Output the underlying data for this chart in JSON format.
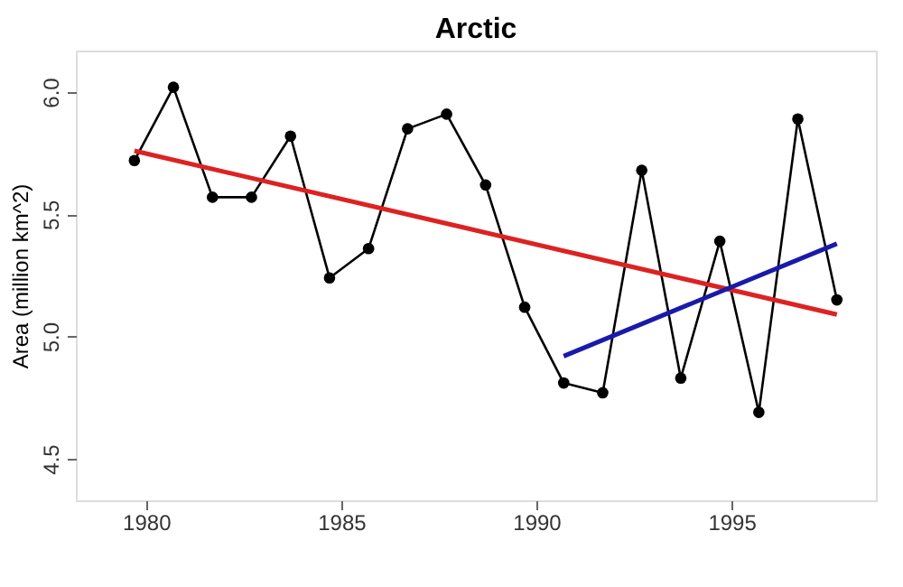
{
  "chart_data": {
    "type": "line",
    "title": "Arctic",
    "ylabel": "Area (million km^2)",
    "xlim": [
      1978.2,
      1998.7
    ],
    "xticks": [
      1980,
      1985,
      1990,
      1995
    ],
    "ylim": [
      4.33,
      6.17
    ],
    "yticks": [
      4.5,
      {
        "value": 5,
        "label": "5.0"
      },
      5.5,
      {
        "value": 6,
        "label": "6.0"
      }
    ],
    "grid": false,
    "series": [
      {
        "color": "#000000",
        "marker": "circle",
        "x": [
          1979.7,
          1980.7,
          1981.7,
          1982.7,
          1983.7,
          1984.7,
          1985.7,
          1986.7,
          1987.7,
          1988.7,
          1989.7,
          1990.7,
          1991.7,
          1992.7,
          1993.7,
          1994.7,
          1995.7,
          1996.7,
          1997.7
        ],
        "values": [
          5.72,
          6.02,
          5.57,
          5.57,
          5.82,
          5.24,
          5.36,
          5.85,
          5.91,
          5.62,
          5.12,
          4.81,
          4.77,
          5.68,
          4.83,
          5.39,
          4.69,
          5.89,
          5.15
        ]
      },
      {
        "color": "#dd2222",
        "marker": "none",
        "x": [
          1979.7,
          1997.7
        ],
        "values": [
          5.76,
          5.09
        ]
      },
      {
        "color": "#1a1aaa",
        "marker": "none",
        "x": [
          1990.7,
          1997.7
        ],
        "values": [
          4.92,
          5.38
        ]
      }
    ]
  }
}
